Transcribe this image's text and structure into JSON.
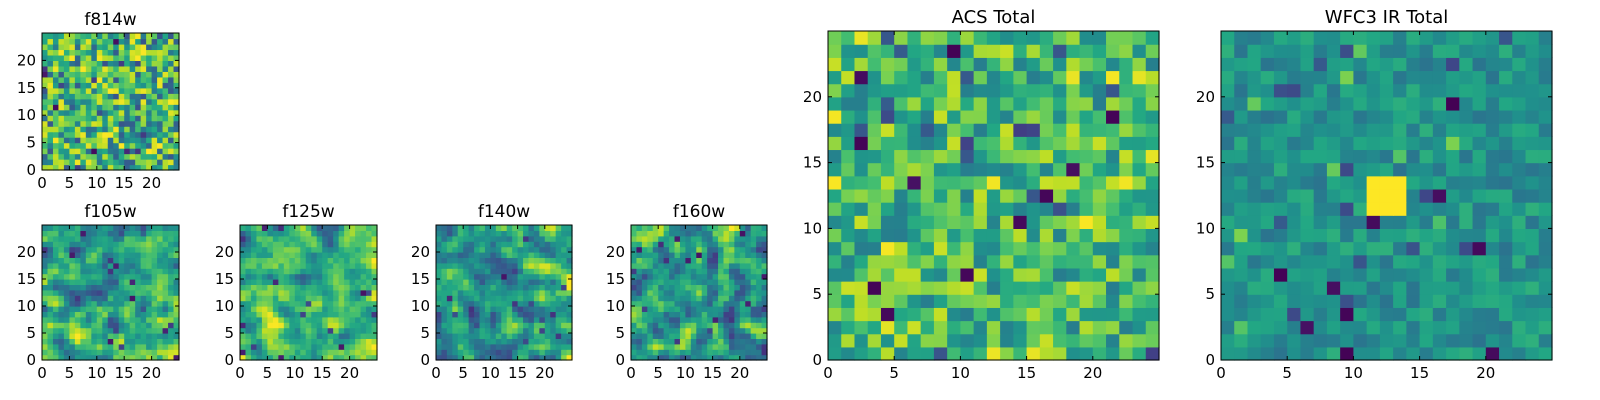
{
  "figure": {
    "description_colormap": "viridis"
  },
  "chart_data": [
    {
      "type": "heatmap",
      "title": "f814w",
      "xlim": [
        0,
        25
      ],
      "ylim": [
        0,
        25
      ],
      "xticks": [
        0,
        5,
        10,
        15,
        20
      ],
      "yticks": [
        0,
        5,
        10,
        15,
        20
      ],
      "texture": "fine-noise",
      "grid": false
    },
    {
      "type": "heatmap",
      "title": "f105w",
      "xlim": [
        0,
        25
      ],
      "ylim": [
        0,
        25
      ],
      "xticks": [
        0,
        5,
        10,
        15,
        20
      ],
      "yticks": [
        0,
        5,
        10,
        15,
        20
      ],
      "texture": "smooth-noise",
      "grid": false
    },
    {
      "type": "heatmap",
      "title": "f125w",
      "xlim": [
        0,
        25
      ],
      "ylim": [
        0,
        25
      ],
      "xticks": [
        0,
        5,
        10,
        15,
        20
      ],
      "yticks": [
        0,
        5,
        10,
        15,
        20
      ],
      "texture": "smooth-noise",
      "grid": false
    },
    {
      "type": "heatmap",
      "title": "f140w",
      "xlim": [
        0,
        25
      ],
      "ylim": [
        0,
        25
      ],
      "xticks": [
        0,
        5,
        10,
        15,
        20
      ],
      "yticks": [
        0,
        5,
        10,
        15,
        20
      ],
      "texture": "smooth-noise",
      "grid": false
    },
    {
      "type": "heatmap",
      "title": "f160w",
      "xlim": [
        0,
        25
      ],
      "ylim": [
        0,
        25
      ],
      "xticks": [
        0,
        5,
        10,
        15,
        20
      ],
      "yticks": [
        0,
        5,
        10,
        15,
        20
      ],
      "texture": "smooth-noise",
      "grid": false
    },
    {
      "type": "heatmap",
      "title": "ACS Total",
      "xlim": [
        0,
        25
      ],
      "ylim": [
        0,
        25
      ],
      "xticks": [
        0,
        5,
        10,
        15,
        20
      ],
      "yticks": [
        0,
        5,
        10,
        15,
        20
      ],
      "texture": "pixel-noise",
      "grid": false
    },
    {
      "type": "heatmap",
      "title": "WFC3 IR Total",
      "xlim": [
        0,
        25
      ],
      "ylim": [
        0,
        25
      ],
      "xticks": [
        0,
        5,
        10,
        15,
        20
      ],
      "yticks": [
        0,
        5,
        10,
        15,
        20
      ],
      "texture": "pixel-noise-with-bright-source",
      "source_center": [
        12,
        12
      ],
      "grid": false
    }
  ]
}
